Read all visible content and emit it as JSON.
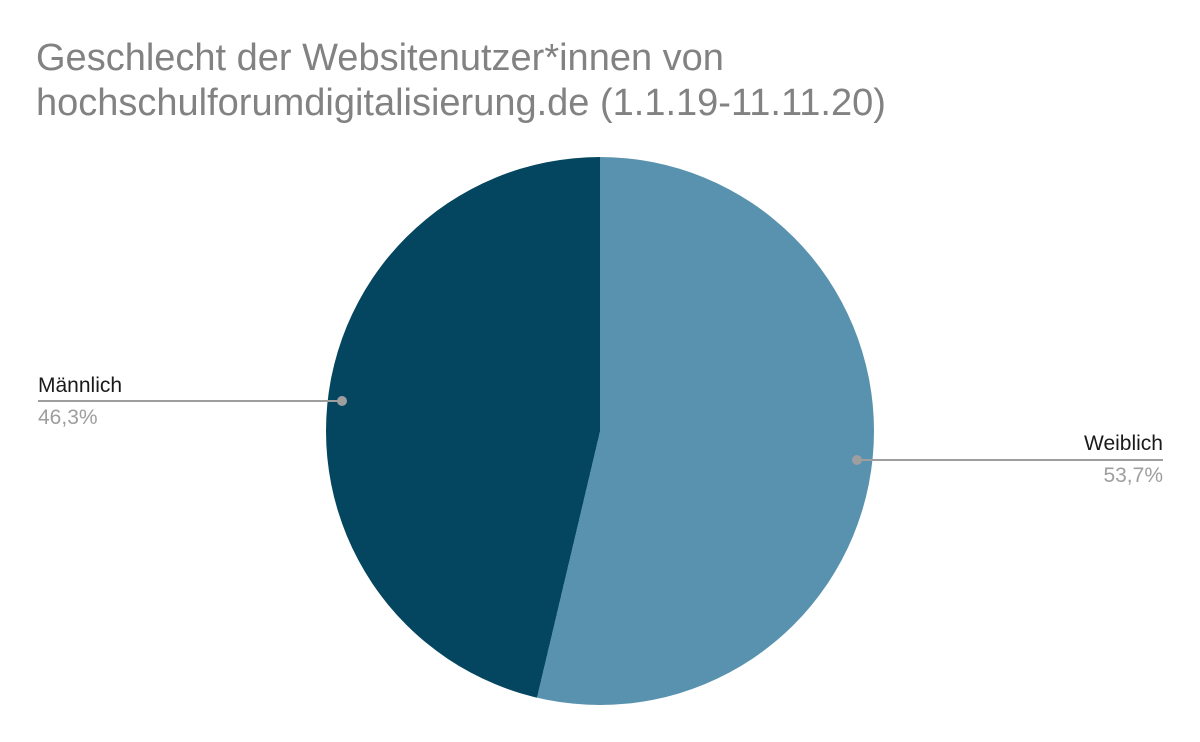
{
  "chart_data": {
    "type": "pie",
    "title": "Geschlecht der Websitenutzer*innen von hochschulforumdigitalisierung.de (1.1.19-11.11.20)",
    "categories": [
      "Weiblich",
      "Männlich"
    ],
    "values": [
      53.7,
      46.3
    ],
    "slices": [
      {
        "label": "Weiblich",
        "value_pct": 53.7,
        "display_value": "53,7%",
        "color": "#5992ae",
        "callout_side": "right"
      },
      {
        "label": "Männlich",
        "value_pct": 46.3,
        "display_value": "46,3%",
        "color": "#04465f",
        "callout_side": "left"
      }
    ],
    "start_angle_deg": 0,
    "direction": "clockwise",
    "legend_position": "callout-labels",
    "background": "#ffffff"
  },
  "theme": {
    "title_color": "#828282",
    "label_color": "#1a1a1a",
    "value_color": "#9e9e9e",
    "leader_line_color": "#9e9e9e"
  }
}
